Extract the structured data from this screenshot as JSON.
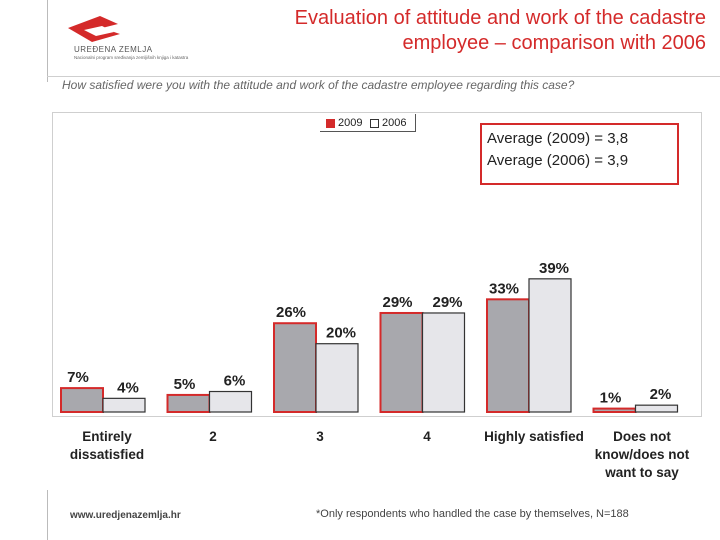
{
  "header": {
    "title_line1": "Evaluation of attitude and work of the cadastre",
    "title_line2": "employee – comparison with 2006",
    "logo_name": "UREĐENA ZEMLJA",
    "logo_tagline": "Nacionalni program sređivanja zemljišnih knjiga i katastra",
    "question": "How satisfied were you with the attitude and work of the cadastre employee regarding this case?"
  },
  "averages": {
    "line1": "Average (2009) = 3,8",
    "line2": "Average (2006) = 3,9"
  },
  "footer": {
    "url": "www.uredjenazemlja.hr",
    "note": "*Only respondents who handled the case by themselves, N=188"
  },
  "colors": {
    "accent": "#d42a2a",
    "bar_2009": "#a8a8ad",
    "bar_2006": "#e6e6ea",
    "bar_2009_border": "#d42a2a",
    "bar_2006_border": "#333333"
  },
  "chart_data": {
    "type": "bar",
    "categories": [
      "Entirely dissatisfied",
      "2",
      "3",
      "4",
      "Highly satisfied",
      "Does not know/does not want to say"
    ],
    "series": [
      {
        "name": "2009",
        "values": [
          7,
          5,
          26,
          29,
          33,
          1
        ],
        "labels": [
          "7%",
          "5%",
          "26%",
          "29%",
          "33%",
          "1%"
        ]
      },
      {
        "name": "2006",
        "values": [
          4,
          6,
          20,
          29,
          39,
          2
        ],
        "labels": [
          "4%",
          "6%",
          "20%",
          "29%",
          "39%",
          "2%"
        ]
      }
    ],
    "ylim": [
      0,
      41
    ],
    "grid": false,
    "legend": "top-center"
  }
}
